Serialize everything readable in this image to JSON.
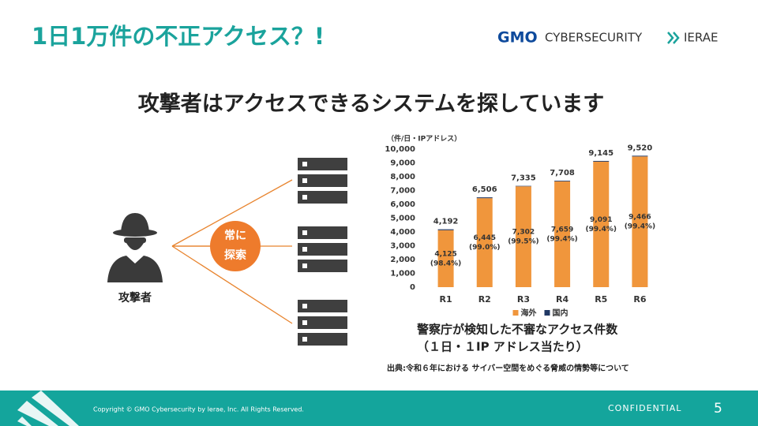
{
  "header": {
    "title": "1日1万件の不正アクセス？!",
    "logo_gmo": "GMO",
    "logo_text": "CYBERSECURITY",
    "logo_brand": "IERAE"
  },
  "subtitle": "攻撃者はアクセスできるシステムを探しています",
  "diagram": {
    "attacker_label": "攻撃者",
    "action_line1": "常に",
    "action_line2": "探索"
  },
  "chart_data": {
    "type": "bar",
    "stacked": true,
    "unit_label": "（件/日・IPアドレス）",
    "categories": [
      "R1",
      "R2",
      "R3",
      "R4",
      "R5",
      "R6"
    ],
    "series": [
      {
        "name": "海外",
        "color": "#f0963c",
        "values": [
          4125,
          6445,
          7302,
          7659,
          9091,
          9466
        ],
        "value_labels": [
          "4,125",
          "6,445",
          "7,302",
          "7,659",
          "9,091",
          "9,466"
        ],
        "share_labels": [
          "(98.4%)",
          "(99.0%)",
          "(99.5%)",
          "(99.4%)",
          "(99.4%)",
          "(99.4%)"
        ]
      },
      {
        "name": "国内",
        "color": "#203864",
        "values": [
          67,
          61,
          33,
          49,
          54,
          54
        ]
      }
    ],
    "totals": [
      4192,
      6506,
      7335,
      7708,
      9145,
      9520
    ],
    "total_labels": [
      "4,192",
      "6,506",
      "7,335",
      "7,708",
      "9,145",
      "9,520"
    ],
    "ylim": [
      0,
      10000
    ],
    "yticks": [
      0,
      {
        "value": 1000,
        "label": "1,000"
      },
      {
        "value": 2000,
        "label": "2,000"
      },
      {
        "value": 3000,
        "label": "3,000"
      },
      {
        "value": 4000,
        "label": "4,000"
      },
      {
        "value": 5000,
        "label": "5,000"
      },
      {
        "value": 6000,
        "label": "6,000"
      },
      {
        "value": 7000,
        "label": "7,000"
      },
      {
        "value": 8000,
        "label": "8,000"
      },
      {
        "value": 9000,
        "label": "9,000"
      },
      {
        "value": 10000,
        "label": "10,000"
      }
    ],
    "legend": "bottom"
  },
  "caption": {
    "line1": "警察庁が検知した不審なアクセス件数",
    "line2": "（１日・１IP アドレス当たり）",
    "source": "出典:令和６年における サイバー空間をめぐる脅威の情勢等について"
  },
  "footer": {
    "copyright": "Copyright © GMO Cybersecurity by Ierae, Inc. All Rights Reserved.",
    "confidential": "CONFIDENTIAL",
    "page": "5"
  }
}
